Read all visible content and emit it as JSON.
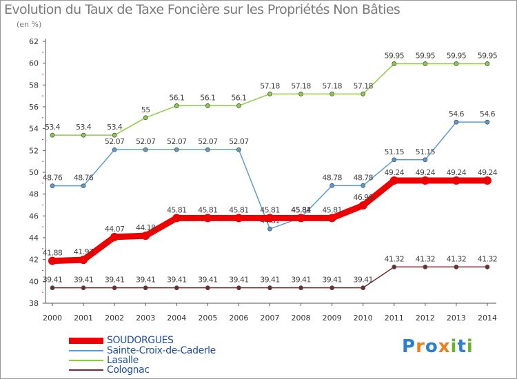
{
  "title": "Evolution du Taux de Taxe Foncière sur les Propriétés Non Bâties",
  "unit": "(en %)",
  "brand": "Proxiti",
  "chart_data": {
    "type": "line",
    "title": "Evolution du Taux de Taxe Foncière sur les Propriétés Non Bâties",
    "ylabel": "(en %)",
    "xlabel": "",
    "ylim": [
      38,
      62
    ],
    "yticks": [
      38,
      40,
      42,
      44,
      46,
      48,
      50,
      52,
      54,
      56,
      58,
      60,
      62
    ],
    "grid": false,
    "legend": "bottom-left",
    "categories": [
      "2000",
      "2001",
      "2002",
      "2003",
      "2004",
      "2005",
      "2006",
      "2007",
      "2008",
      "2009",
      "2010",
      "2011",
      "2012",
      "2013",
      "2014"
    ],
    "series": [
      {
        "name": "Colognac",
        "color": "#722b2b",
        "values": [
          39.41,
          39.41,
          39.41,
          39.41,
          39.41,
          39.41,
          39.41,
          39.41,
          39.41,
          39.41,
          39.41,
          41.32,
          41.32,
          41.32,
          41.32
        ],
        "labels": [
          "39.41",
          "39.41",
          "39.41",
          "39.41",
          "39.41",
          "39.41",
          "39.41",
          "39.41",
          "39.41",
          "39.41",
          "39.41",
          "41.32",
          "41.32",
          "41.32",
          "41.32"
        ]
      },
      {
        "name": "Lasalle",
        "color": "#8ccd44",
        "values": [
          53.4,
          53.4,
          53.4,
          55,
          56.1,
          56.1,
          56.1,
          57.18,
          57.18,
          57.18,
          57.18,
          59.95,
          59.95,
          59.95,
          59.95
        ],
        "labels": [
          "53.4",
          "53.4",
          "53.4",
          "55",
          "56.1",
          "56.1",
          "56.1",
          "57.18",
          "57.18",
          "57.18",
          "57.18",
          "59.95",
          "59.95",
          "59.95",
          "59.95"
        ]
      },
      {
        "name": "Sainte-Croix-de-Caderle",
        "color": "#5b9bd1",
        "values": [
          48.76,
          48.76,
          52.07,
          52.07,
          52.07,
          52.07,
          52.07,
          44.81,
          45.84,
          48.78,
          48.78,
          51.15,
          51.15,
          54.6,
          54.6
        ],
        "labels": [
          "48.76",
          "48.76",
          "52.07",
          "52.07",
          "52.07",
          "52.07",
          "52.07",
          "44.81",
          "45.84",
          "48.78",
          "48.78",
          "51.15",
          "51.15",
          "54.6",
          "54.6"
        ]
      },
      {
        "name": "SOUDORGUES",
        "color": "#ee0000",
        "values": [
          41.88,
          41.97,
          44.07,
          44.18,
          45.81,
          45.81,
          45.81,
          45.81,
          45.81,
          45.81,
          46.96,
          49.24,
          49.24,
          49.24,
          49.24
        ],
        "labels": [
          "41.88",
          "41.97",
          "44.07",
          "44.18",
          "45.81",
          "45.81",
          "45.81",
          "45.81",
          "45.81",
          "45.81",
          "46.96",
          "49.24",
          "49.24",
          "49.24",
          "49.24"
        ]
      }
    ]
  },
  "legend": [
    {
      "name": "SOUDORGUES",
      "color": "#ee0000"
    },
    {
      "name": "Sainte-Croix-de-Caderle",
      "color": "#5b9bd1"
    },
    {
      "name": "Lasalle",
      "color": "#8ccd44"
    },
    {
      "name": "Colognac",
      "color": "#722b2b"
    }
  ]
}
